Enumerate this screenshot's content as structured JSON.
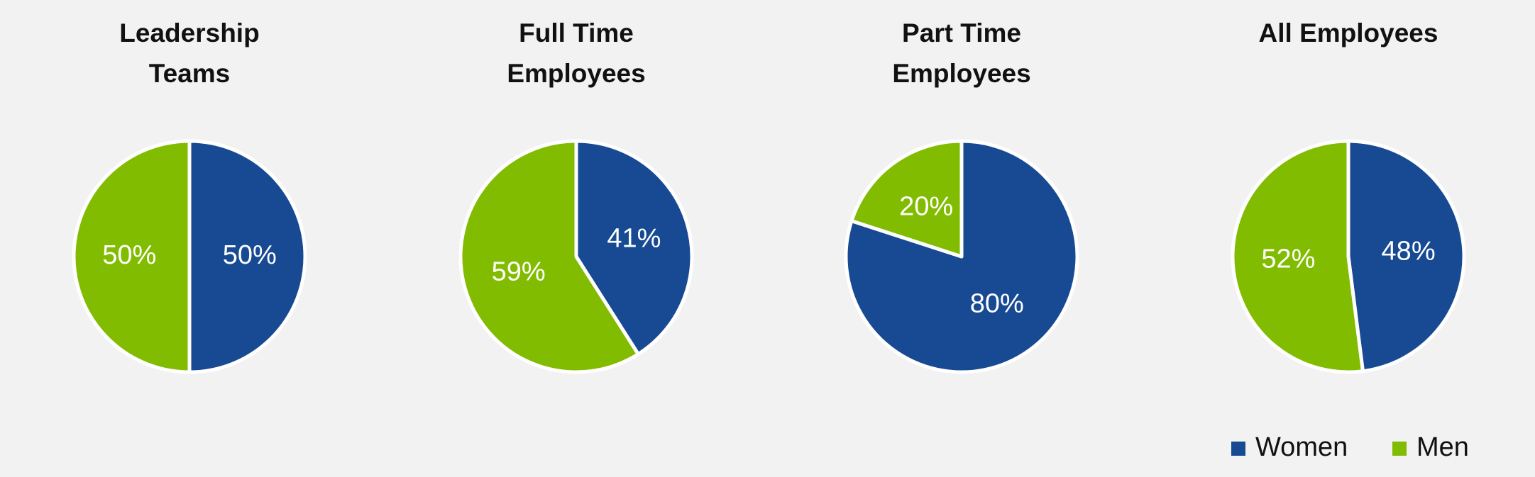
{
  "chart_data": [
    {
      "type": "pie",
      "title": "Leadership Teams",
      "categories": [
        "Women",
        "Men"
      ],
      "values": [
        50,
        50
      ],
      "value_labels": [
        "50%",
        "50%"
      ],
      "colors": [
        "#174a93",
        "#82bc00"
      ]
    },
    {
      "type": "pie",
      "title": "Full Time Employees",
      "categories": [
        "Women",
        "Men"
      ],
      "values": [
        41,
        59
      ],
      "value_labels": [
        "41%",
        "59%"
      ],
      "colors": [
        "#174a93",
        "#82bc00"
      ]
    },
    {
      "type": "pie",
      "title": "Part Time Employees",
      "categories": [
        "Women",
        "Men"
      ],
      "values": [
        80,
        20
      ],
      "value_labels": [
        "80%",
        "20%"
      ],
      "colors": [
        "#174a93",
        "#82bc00"
      ]
    },
    {
      "type": "pie",
      "title": "All Employees",
      "categories": [
        "Women",
        "Men"
      ],
      "values": [
        48,
        52
      ],
      "value_labels": [
        "48%",
        "52%"
      ],
      "colors": [
        "#174a93",
        "#82bc00"
      ]
    }
  ]
}
